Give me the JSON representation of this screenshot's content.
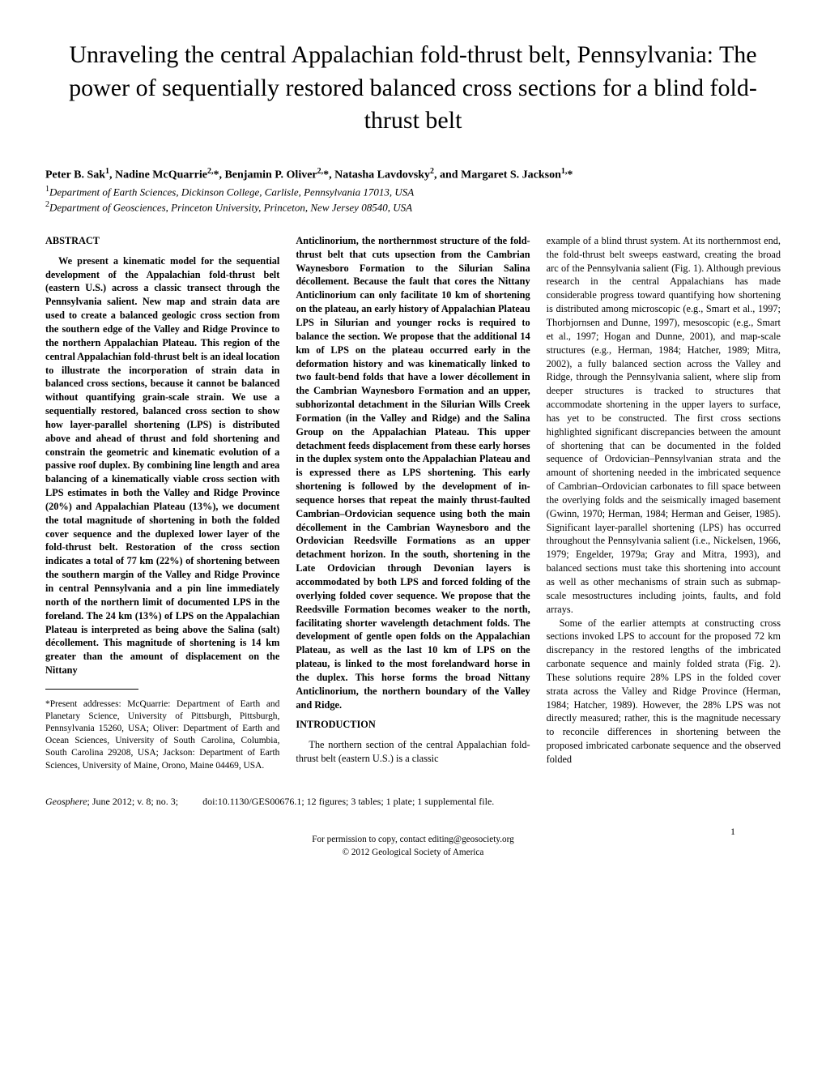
{
  "title": "Unraveling the central Appalachian fold-thrust belt, Pennsylvania: The power of sequentially restored balanced cross sections for a blind fold-thrust belt",
  "authors_html": "Peter B. Sak<sup>1</sup>, Nadine McQuarrie<sup>2,</sup>*, Benjamin P. Oliver<sup>2,</sup>*, Natasha Lavdovsky<sup>2</sup>, and Margaret S. Jackson<sup>1,</sup>*",
  "affil1_html": "<sup>1</sup>Department of Earth Sciences, Dickinson College, Carlisle, Pennsylvania 17013, USA",
  "affil2_html": "<sup>2</sup>Department of Geosciences, Princeton University, Princeton, New Jersey 08540, USA",
  "col1": {
    "abstract_head": "ABSTRACT",
    "abstract": "We present a kinematic model for the sequential development of the Appalachian fold-thrust belt (eastern U.S.) across a classic transect through the Pennsylvania salient. New map and strain data are used to create a balanced geologic cross section from the southern edge of the Valley and Ridge Province to the northern Appalachian Plateau. This region of the central Appalachian fold-thrust belt is an ideal location to illustrate the incorporation of strain data in balanced cross sections, because it cannot be balanced without quantifying grain-scale strain. We use a sequentially restored, balanced cross section to show how layer-parallel shortening (LPS) is distributed above and ahead of thrust and fold shortening and constrain the geometric and kinematic evolution of a passive roof duplex. By combining line length and area balancing of a kinematically viable cross section with LPS estimates in both the Valley and Ridge Province (20%) and Appalachian Plateau (13%), we document the total magnitude of shortening in both the folded cover sequence and the duplexed lower layer of the fold-thrust belt. Restoration of the cross section indicates a total of 77 km (22%) of shortening between the southern margin of the Valley and Ridge Province in central Pennsylvania and a pin line immediately north of the northern limit of documented LPS in the foreland. The 24 km (13%) of LPS on the Appalachian Plateau is interpreted as being above the Salina (salt) décollement. This magnitude of shortening is 14 km greater than the amount of displacement on the Nittany",
    "footnote": "*Present addresses: McQuarrie: Department of Earth and Planetary Science, University of Pittsburgh, Pittsburgh, Pennsylvania 15260, USA; Oliver: Department of Earth and Ocean Sciences, University of South Carolina, Columbia, South Carolina 29208, USA; Jackson: Department of Earth Sciences, University of Maine, Orono, Maine 04469, USA."
  },
  "col2": {
    "cont": "Anticlinorium, the northernmost structure of the fold-thrust belt that cuts upsection from the Cambrian Waynesboro Formation to the Silurian Salina décollement. Because the fault that cores the Nittany Anticlinorium can only facilitate 10 km of shortening on the plateau, an early history of Appalachian Plateau LPS in Silurian and younger rocks is required to balance the section. We propose that the additional 14 km of LPS on the plateau occurred early in the deformation history and was kinematically linked to two fault-bend folds that have a lower décollement in the Cambrian Waynesboro Formation and an upper, subhorizontal detachment in the Silurian Wills Creek Formation (in the Valley and Ridge) and the Salina Group on the Appalachian Plateau. This upper detachment feeds displacement from these early horses in the duplex system onto the Appalachian Plateau and is expressed there as LPS shortening. This early shortening is followed by the development of in-sequence horses that repeat the mainly thrust-faulted Cambrian–Ordovician sequence using both the main décollement in the Cambrian Waynesboro and the Ordovician Reedsville Formations as an upper detachment horizon. In the south, shortening in the Late Ordovician through Devonian layers is accommodated by both LPS and forced folding of the overlying folded cover sequence. We propose that the Reedsville Formation becomes weaker to the north, facilitating shorter wavelength detachment folds. The development of gentle open folds on the Appalachian Plateau, as well as the last 10 km of LPS on the plateau, is linked to the most forelandward horse in the duplex. This horse forms the broad Nittany Anticlinorium, the northern boundary of the Valley and Ridge.",
    "intro_head": "INTRODUCTION",
    "intro": "The northern section of the central Appalachian fold-thrust belt (eastern U.S.) is a classic"
  },
  "col3": {
    "p1": "example of a blind thrust system. At its northernmost end, the fold-thrust belt sweeps eastward, creating the broad arc of the Pennsylvania salient (Fig. 1). Although previous research in the central Appalachians has made considerable progress toward quantifying how shortening is distributed among microscopic (e.g., Smart et al., 1997; Thorbjornsen and Dunne, 1997), mesoscopic (e.g., Smart et al., 1997; Hogan and Dunne, 2001), and map-scale structures (e.g., Herman, 1984; Hatcher, 1989; Mitra, 2002), a fully balanced section across the Valley and Ridge, through the Pennsylvania salient, where slip from deeper structures is tracked to structures that accommodate shortening in the upper layers to surface, has yet to be constructed. The first cross sections highlighted significant discrepancies between the amount of shortening that can be documented in the folded sequence of Ordovician–Pennsylvanian strata and the amount of shortening needed in the imbricated sequence of Cambrian–Ordovician carbonates to fill space between the overlying folds and the seismically imaged basement (Gwinn, 1970; Herman, 1984; Herman and Geiser, 1985). Significant layer-parallel shortening (LPS) has occurred throughout the Pennsylvania salient (i.e., Nickelsen, 1966, 1979; Engelder, 1979a; Gray and Mitra, 1993), and balanced sections must take this shortening into account as well as other mechanisms of strain such as submap-scale mesostructures including joints, faults, and fold arrays.",
    "p2": "Some of the earlier attempts at constructing cross sections invoked LPS to account for the proposed 72 km discrepancy in the restored lengths of the imbricated carbonate sequence and mainly folded strata (Fig. 2). These solutions require 28% LPS in the folded cover strata across the Valley and Ridge Province (Herman, 1984; Hatcher, 1989). However, the 28% LPS was not directly measured; rather, this is the magnitude necessary to reconcile differences in shortening between the proposed imbricated carbonate sequence and the observed folded"
  },
  "footer": {
    "journal": "Geosphere",
    "issue": "; June 2012; v. 8; no. 3;",
    "doi": "doi:10.1130/GES00676.1; 12 figures; 3 tables; 1 plate; 1 supplemental file.",
    "permission1": "For permission to copy, contact editing@geosociety.org",
    "permission2": "© 2012 Geological Society of America",
    "page": "1"
  }
}
